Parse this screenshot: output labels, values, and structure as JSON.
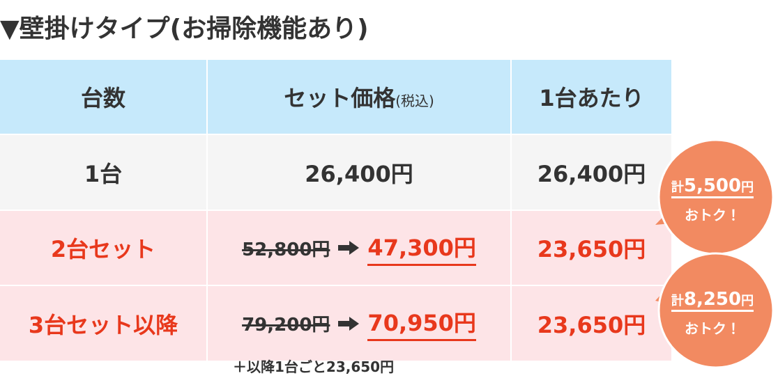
{
  "title": "▼壁掛けタイプ(お掃除機能あり)",
  "table": {
    "header": {
      "count": "台数",
      "price": "セット価格",
      "price_note": "(税込)",
      "per_unit": "1台あたり"
    },
    "rows": [
      {
        "count": "1台",
        "price": "26,400円",
        "per_unit": "26,400円"
      },
      {
        "count": "2台セット",
        "original_price": "52,800円",
        "price": "47,300円",
        "per_unit": "23,650円"
      },
      {
        "count": "3台セット以降",
        "original_price": "79,200円",
        "price": "70,950円",
        "per_unit": "23,650円"
      }
    ],
    "note": "＋以降1台ごと23,650円"
  },
  "badges": [
    {
      "prefix": "計",
      "amount": "5,500",
      "unit": "円",
      "text": "おトク！"
    },
    {
      "prefix": "計",
      "amount": "8,250",
      "unit": "円",
      "text": "おトク！"
    }
  ]
}
